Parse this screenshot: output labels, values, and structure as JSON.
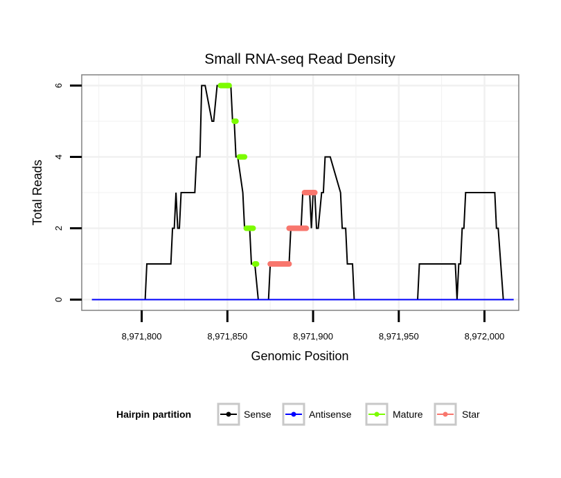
{
  "chart_data": {
    "type": "line",
    "title": "Small RNA-seq Read Density",
    "xlabel": "Genomic Position",
    "ylabel": "Total Reads",
    "xlim": [
      8971765,
      8972020
    ],
    "ylim": [
      -0.3,
      6.3
    ],
    "x_ticks": [
      8971800,
      8971850,
      8971900,
      8971950,
      8972000
    ],
    "x_tick_labels": [
      "8,971,800",
      "8,971,850",
      "8,971,900",
      "8,971,950",
      "8,972,000"
    ],
    "y_ticks": [
      0,
      2,
      4,
      6
    ],
    "y_tick_labels": [
      "0",
      "2",
      "4",
      "6"
    ],
    "grid": true,
    "legend": {
      "title": "Hairpin partition",
      "position": "bottom",
      "entries": [
        "Sense",
        "Antisense",
        "Mature",
        "Star"
      ]
    },
    "series": [
      {
        "name": "Sense",
        "color": "#000000",
        "style": "line",
        "x": [
          8971771,
          8971802,
          8971803,
          8971817,
          8971818,
          8971819,
          8971820,
          8971821,
          8971822,
          8971823,
          8971831,
          8971832,
          8971834,
          8971835,
          8971837,
          8971841,
          8971842,
          8971844,
          8971845,
          8971848,
          8971852,
          8971853,
          8971854,
          8971855,
          8971856,
          8971859,
          8971860,
          8971861,
          8971863,
          8971864,
          8971866,
          8971868,
          8971874,
          8971875,
          8971886,
          8971887,
          8971893,
          8971894,
          8971898,
          8971899,
          8971900,
          8971901,
          8971902,
          8971903,
          8971905,
          8971906,
          8971907,
          8971908,
          8971910,
          8971916,
          8971917,
          8971919,
          8971920,
          8971923,
          8971924,
          8971929,
          8971930,
          8971961,
          8971962,
          8971983,
          8971984,
          8971985,
          8971986,
          8971987,
          8971988,
          8971989,
          8971990,
          8971991,
          8971992,
          8972006,
          8972007,
          8972008,
          8972011,
          8972017
        ],
        "values": [
          0,
          0,
          1,
          1,
          2,
          2,
          3,
          2,
          2,
          3,
          3,
          4,
          4,
          6,
          6,
          5,
          5,
          6,
          6,
          6,
          6,
          5,
          5,
          4,
          4,
          3,
          2,
          2,
          2,
          1,
          1,
          0,
          0,
          1,
          1,
          2,
          2,
          3,
          3,
          2,
          3,
          3,
          2,
          2,
          3,
          3,
          4,
          4,
          4,
          3,
          2,
          2,
          1,
          1,
          0,
          0,
          0,
          0,
          1,
          1,
          0,
          1,
          1,
          2,
          2,
          3,
          3,
          3,
          3,
          3,
          2,
          2,
          0,
          0
        ]
      },
      {
        "name": "Antisense",
        "color": "#0000ff",
        "style": "line",
        "x": [
          8971771,
          8972017
        ],
        "values": [
          0,
          0
        ]
      },
      {
        "name": "Mature",
        "color": "#7cfc00",
        "style": "segments",
        "segments": [
          {
            "x0": 8971846,
            "x1": 8971851,
            "y": 6
          },
          {
            "x0": 8971854,
            "x1": 8971855,
            "y": 5
          },
          {
            "x0": 8971857,
            "x1": 8971860,
            "y": 4
          },
          {
            "x0": 8971861,
            "x1": 8971865,
            "y": 2
          },
          {
            "x0": 8971866,
            "x1": 8971867,
            "y": 1
          }
        ]
      },
      {
        "name": "Star",
        "color": "#f8766d",
        "style": "segments",
        "segments": [
          {
            "x0": 8971875,
            "x1": 8971886,
            "y": 1
          },
          {
            "x0": 8971886,
            "x1": 8971896,
            "y": 2
          },
          {
            "x0": 8971895,
            "x1": 8971901,
            "y": 3
          }
        ]
      }
    ]
  }
}
